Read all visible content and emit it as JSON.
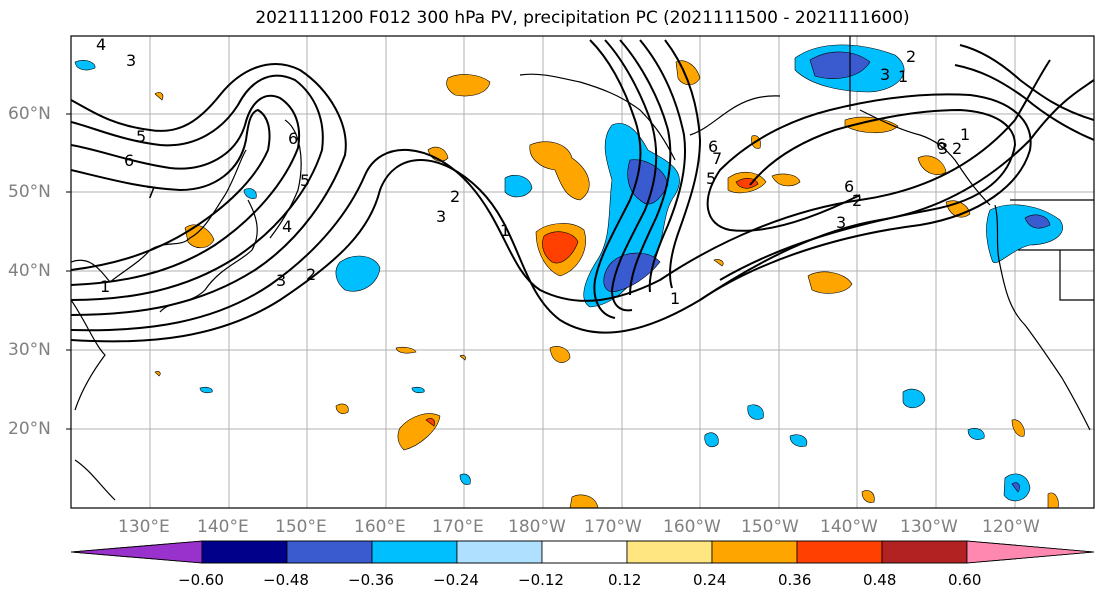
{
  "title": "2021111200 F012 300 hPa PV, precipitation PC (2021111500 - 2021111600)",
  "lat_labels": [
    "60°N",
    "50°N",
    "40°N",
    "30°N",
    "20°N"
  ],
  "lon_labels": [
    "130°E",
    "140°E",
    "150°E",
    "160°E",
    "170°E",
    "180°W",
    "170°W",
    "160°W",
    "150°W",
    "140°W",
    "130°W",
    "120°W"
  ],
  "contour_labels": [
    "4",
    "3",
    "5",
    "6",
    "7",
    "6",
    "5",
    "4",
    "3",
    "2",
    "1",
    "2",
    "3",
    "1",
    "2",
    "3",
    "1",
    "6",
    "7",
    "5",
    "6",
    "3",
    "2",
    "1",
    "1",
    "2",
    "3",
    "6"
  ],
  "colorbar": {
    "tick_labels": [
      "−0.60",
      "−0.48",
      "−0.36",
      "−0.24",
      "−0.12",
      "0.12",
      "0.24",
      "0.36",
      "0.48",
      "0.60"
    ],
    "colors": [
      "#9932cc",
      "#00008b",
      "#3a5bd0",
      "#00bfff",
      "#b0e0ff",
      "#ffffff",
      "#ffe680",
      "#ffa500",
      "#ff4000",
      "#b22222",
      "#ff88b0"
    ]
  }
}
